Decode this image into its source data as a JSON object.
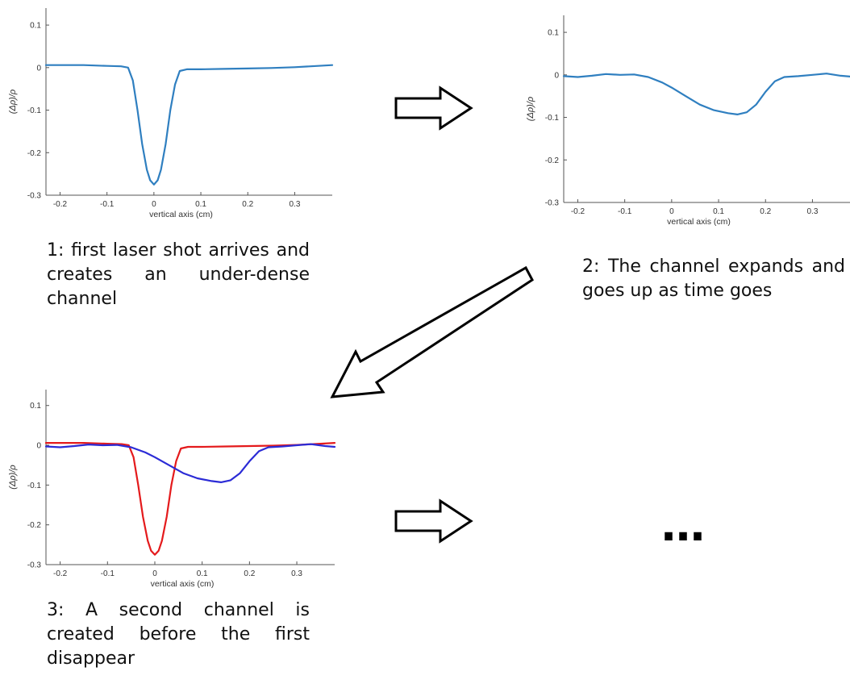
{
  "chart_data": [
    {
      "type": "line",
      "xlabel": "vertical axis  (cm)",
      "ylabel": "(Δρ)/ρ",
      "xlim": [
        -0.23,
        0.38
      ],
      "ylim": [
        -0.3,
        0.14
      ],
      "xticks": [
        "-0.2",
        "-0.1",
        "0",
        "0.1",
        "0.2",
        "0.3"
      ],
      "yticks": [
        "0.1",
        "0",
        "-0.1",
        "-0.2",
        "-0.3"
      ],
      "grid": false,
      "series": [
        {
          "color": "#2f7fc0",
          "x": [
            -0.23,
            -0.15,
            -0.1,
            -0.07,
            -0.055,
            -0.045,
            -0.035,
            -0.025,
            -0.015,
            -0.008,
            0,
            0.008,
            0.015,
            0.025,
            0.035,
            0.045,
            0.055,
            0.07,
            0.1,
            0.15,
            0.2,
            0.25,
            0.3,
            0.35,
            0.38
          ],
          "y": [
            0.006,
            0.006,
            0.004,
            0.003,
            0.0,
            -0.03,
            -0.1,
            -0.18,
            -0.24,
            -0.265,
            -0.275,
            -0.265,
            -0.24,
            -0.18,
            -0.1,
            -0.04,
            -0.008,
            -0.004,
            -0.004,
            -0.003,
            -0.002,
            -0.001,
            0.001,
            0.004,
            0.006
          ]
        }
      ]
    },
    {
      "type": "line",
      "xlabel": "vertical axis  (cm)",
      "ylabel": "(Δρ)/ρ",
      "xlim": [
        -0.23,
        0.38
      ],
      "ylim": [
        -0.3,
        0.14
      ],
      "xticks": [
        "-0.2",
        "-0.1",
        "0",
        "0.1",
        "0.2",
        "0.3"
      ],
      "yticks": [
        "0.1",
        "0",
        "-0.1",
        "-0.2",
        "-0.3"
      ],
      "grid": false,
      "series": [
        {
          "color": "#2f7fc0",
          "x": [
            -0.23,
            -0.2,
            -0.17,
            -0.14,
            -0.11,
            -0.08,
            -0.05,
            -0.02,
            0,
            0.03,
            0.06,
            0.09,
            0.12,
            0.14,
            0.16,
            0.18,
            0.2,
            0.22,
            0.24,
            0.27,
            0.3,
            0.33,
            0.36,
            0.38
          ],
          "y": [
            -0.003,
            -0.005,
            -0.002,
            0.002,
            0.0,
            0.001,
            -0.005,
            -0.018,
            -0.03,
            -0.05,
            -0.07,
            -0.083,
            -0.09,
            -0.093,
            -0.088,
            -0.07,
            -0.04,
            -0.015,
            -0.005,
            -0.003,
            0.0,
            0.003,
            -0.002,
            -0.004
          ]
        }
      ]
    },
    {
      "type": "line",
      "xlabel": "vertical axis  (cm)",
      "ylabel": "(Δρ)/ρ",
      "xlim": [
        -0.23,
        0.38
      ],
      "ylim": [
        -0.3,
        0.14
      ],
      "xticks": [
        "-0.2",
        "-0.1",
        "0",
        "0.1",
        "0.2",
        "0.3"
      ],
      "yticks": [
        "0.1",
        "0",
        "-0.1",
        "-0.2",
        "-0.3"
      ],
      "grid": false,
      "series": [
        {
          "color": "#e41a1c",
          "x": [
            -0.23,
            -0.15,
            -0.1,
            -0.07,
            -0.055,
            -0.045,
            -0.035,
            -0.025,
            -0.015,
            -0.008,
            0,
            0.008,
            0.015,
            0.025,
            0.035,
            0.045,
            0.055,
            0.07,
            0.1,
            0.15,
            0.2,
            0.25,
            0.3,
            0.35,
            0.38
          ],
          "y": [
            0.006,
            0.006,
            0.004,
            0.003,
            0.0,
            -0.03,
            -0.1,
            -0.18,
            -0.24,
            -0.265,
            -0.275,
            -0.265,
            -0.24,
            -0.18,
            -0.1,
            -0.04,
            -0.008,
            -0.004,
            -0.004,
            -0.003,
            -0.002,
            -0.001,
            0.001,
            0.004,
            0.006
          ]
        },
        {
          "color": "#2b2bd6",
          "x": [
            -0.23,
            -0.2,
            -0.17,
            -0.14,
            -0.11,
            -0.08,
            -0.05,
            -0.02,
            0,
            0.03,
            0.06,
            0.09,
            0.12,
            0.14,
            0.16,
            0.18,
            0.2,
            0.22,
            0.24,
            0.27,
            0.3,
            0.33,
            0.36,
            0.38
          ],
          "y": [
            -0.003,
            -0.005,
            -0.002,
            0.002,
            0.0,
            0.001,
            -0.005,
            -0.018,
            -0.03,
            -0.05,
            -0.07,
            -0.083,
            -0.09,
            -0.093,
            -0.088,
            -0.07,
            -0.04,
            -0.015,
            -0.005,
            -0.003,
            0.0,
            0.003,
            -0.002,
            -0.004
          ]
        }
      ]
    }
  ],
  "captions": {
    "step1": "1: first laser shot arrives and creates an under-dense channel",
    "step2": "2: The channel expands and goes up as time goes",
    "step3": "3: A second channel is created before the first disappear"
  },
  "ellipsis": "…"
}
